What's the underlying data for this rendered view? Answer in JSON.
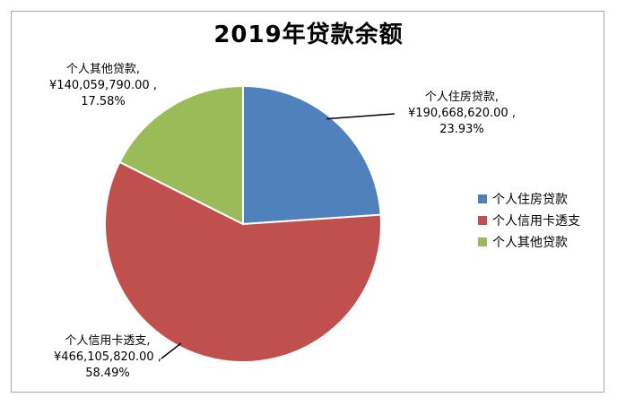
{
  "chart_data": {
    "type": "pie",
    "title": "2019年贷款余额",
    "categories": [
      "个人住房贷款",
      "个人信用卡透支",
      "个人其他贷款"
    ],
    "values": [
      190668620.0,
      466105820.0,
      140059790.0
    ],
    "percentages": [
      23.93,
      58.49,
      17.58
    ],
    "colors": [
      "#4f81bd",
      "#c0504d",
      "#9bbb59"
    ],
    "legend_position": "right",
    "data_labels": [
      {
        "name": "个人住房贷款,",
        "value": "¥190,668,620.00 ,",
        "percent": "23.93%"
      },
      {
        "name": "个人信用卡透支,",
        "value": "¥466,105,820.00 ,",
        "percent": "58.49%"
      },
      {
        "name": "个人其他贷款,",
        "value": "¥140,059,790.00 ,",
        "percent": "17.58%"
      }
    ],
    "legend": [
      "个人住房贷款",
      "个人信用卡透支",
      "个人其他贷款"
    ]
  }
}
